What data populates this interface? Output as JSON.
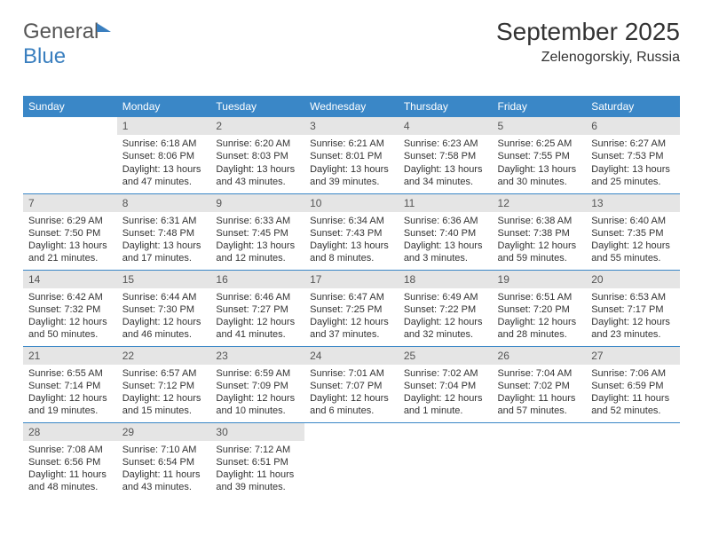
{
  "logo": {
    "text1": "General",
    "text2": "Blue"
  },
  "header": {
    "month": "September 2025",
    "location": "Zelenogorskiy, Russia"
  },
  "colors": {
    "header_bg": "#3a87c7",
    "header_text": "#ffffff",
    "daynum_bg": "#e5e5e5",
    "rule": "#3a87c7",
    "logo_blue": "#3a7fbf"
  },
  "daysOfWeek": [
    "Sunday",
    "Monday",
    "Tuesday",
    "Wednesday",
    "Thursday",
    "Friday",
    "Saturday"
  ],
  "weeks": [
    [
      {
        "day": "",
        "sunrise": "",
        "sunset": "",
        "daylight": ""
      },
      {
        "day": "1",
        "sunrise": "Sunrise: 6:18 AM",
        "sunset": "Sunset: 8:06 PM",
        "daylight": "Daylight: 13 hours and 47 minutes."
      },
      {
        "day": "2",
        "sunrise": "Sunrise: 6:20 AM",
        "sunset": "Sunset: 8:03 PM",
        "daylight": "Daylight: 13 hours and 43 minutes."
      },
      {
        "day": "3",
        "sunrise": "Sunrise: 6:21 AM",
        "sunset": "Sunset: 8:01 PM",
        "daylight": "Daylight: 13 hours and 39 minutes."
      },
      {
        "day": "4",
        "sunrise": "Sunrise: 6:23 AM",
        "sunset": "Sunset: 7:58 PM",
        "daylight": "Daylight: 13 hours and 34 minutes."
      },
      {
        "day": "5",
        "sunrise": "Sunrise: 6:25 AM",
        "sunset": "Sunset: 7:55 PM",
        "daylight": "Daylight: 13 hours and 30 minutes."
      },
      {
        "day": "6",
        "sunrise": "Sunrise: 6:27 AM",
        "sunset": "Sunset: 7:53 PM",
        "daylight": "Daylight: 13 hours and 25 minutes."
      }
    ],
    [
      {
        "day": "7",
        "sunrise": "Sunrise: 6:29 AM",
        "sunset": "Sunset: 7:50 PM",
        "daylight": "Daylight: 13 hours and 21 minutes."
      },
      {
        "day": "8",
        "sunrise": "Sunrise: 6:31 AM",
        "sunset": "Sunset: 7:48 PM",
        "daylight": "Daylight: 13 hours and 17 minutes."
      },
      {
        "day": "9",
        "sunrise": "Sunrise: 6:33 AM",
        "sunset": "Sunset: 7:45 PM",
        "daylight": "Daylight: 13 hours and 12 minutes."
      },
      {
        "day": "10",
        "sunrise": "Sunrise: 6:34 AM",
        "sunset": "Sunset: 7:43 PM",
        "daylight": "Daylight: 13 hours and 8 minutes."
      },
      {
        "day": "11",
        "sunrise": "Sunrise: 6:36 AM",
        "sunset": "Sunset: 7:40 PM",
        "daylight": "Daylight: 13 hours and 3 minutes."
      },
      {
        "day": "12",
        "sunrise": "Sunrise: 6:38 AM",
        "sunset": "Sunset: 7:38 PM",
        "daylight": "Daylight: 12 hours and 59 minutes."
      },
      {
        "day": "13",
        "sunrise": "Sunrise: 6:40 AM",
        "sunset": "Sunset: 7:35 PM",
        "daylight": "Daylight: 12 hours and 55 minutes."
      }
    ],
    [
      {
        "day": "14",
        "sunrise": "Sunrise: 6:42 AM",
        "sunset": "Sunset: 7:32 PM",
        "daylight": "Daylight: 12 hours and 50 minutes."
      },
      {
        "day": "15",
        "sunrise": "Sunrise: 6:44 AM",
        "sunset": "Sunset: 7:30 PM",
        "daylight": "Daylight: 12 hours and 46 minutes."
      },
      {
        "day": "16",
        "sunrise": "Sunrise: 6:46 AM",
        "sunset": "Sunset: 7:27 PM",
        "daylight": "Daylight: 12 hours and 41 minutes."
      },
      {
        "day": "17",
        "sunrise": "Sunrise: 6:47 AM",
        "sunset": "Sunset: 7:25 PM",
        "daylight": "Daylight: 12 hours and 37 minutes."
      },
      {
        "day": "18",
        "sunrise": "Sunrise: 6:49 AM",
        "sunset": "Sunset: 7:22 PM",
        "daylight": "Daylight: 12 hours and 32 minutes."
      },
      {
        "day": "19",
        "sunrise": "Sunrise: 6:51 AM",
        "sunset": "Sunset: 7:20 PM",
        "daylight": "Daylight: 12 hours and 28 minutes."
      },
      {
        "day": "20",
        "sunrise": "Sunrise: 6:53 AM",
        "sunset": "Sunset: 7:17 PM",
        "daylight": "Daylight: 12 hours and 23 minutes."
      }
    ],
    [
      {
        "day": "21",
        "sunrise": "Sunrise: 6:55 AM",
        "sunset": "Sunset: 7:14 PM",
        "daylight": "Daylight: 12 hours and 19 minutes."
      },
      {
        "day": "22",
        "sunrise": "Sunrise: 6:57 AM",
        "sunset": "Sunset: 7:12 PM",
        "daylight": "Daylight: 12 hours and 15 minutes."
      },
      {
        "day": "23",
        "sunrise": "Sunrise: 6:59 AM",
        "sunset": "Sunset: 7:09 PM",
        "daylight": "Daylight: 12 hours and 10 minutes."
      },
      {
        "day": "24",
        "sunrise": "Sunrise: 7:01 AM",
        "sunset": "Sunset: 7:07 PM",
        "daylight": "Daylight: 12 hours and 6 minutes."
      },
      {
        "day": "25",
        "sunrise": "Sunrise: 7:02 AM",
        "sunset": "Sunset: 7:04 PM",
        "daylight": "Daylight: 12 hours and 1 minute."
      },
      {
        "day": "26",
        "sunrise": "Sunrise: 7:04 AM",
        "sunset": "Sunset: 7:02 PM",
        "daylight": "Daylight: 11 hours and 57 minutes."
      },
      {
        "day": "27",
        "sunrise": "Sunrise: 7:06 AM",
        "sunset": "Sunset: 6:59 PM",
        "daylight": "Daylight: 11 hours and 52 minutes."
      }
    ],
    [
      {
        "day": "28",
        "sunrise": "Sunrise: 7:08 AM",
        "sunset": "Sunset: 6:56 PM",
        "daylight": "Daylight: 11 hours and 48 minutes."
      },
      {
        "day": "29",
        "sunrise": "Sunrise: 7:10 AM",
        "sunset": "Sunset: 6:54 PM",
        "daylight": "Daylight: 11 hours and 43 minutes."
      },
      {
        "day": "30",
        "sunrise": "Sunrise: 7:12 AM",
        "sunset": "Sunset: 6:51 PM",
        "daylight": "Daylight: 11 hours and 39 minutes."
      },
      {
        "day": "",
        "sunrise": "",
        "sunset": "",
        "daylight": ""
      },
      {
        "day": "",
        "sunrise": "",
        "sunset": "",
        "daylight": ""
      },
      {
        "day": "",
        "sunrise": "",
        "sunset": "",
        "daylight": ""
      },
      {
        "day": "",
        "sunrise": "",
        "sunset": "",
        "daylight": ""
      }
    ]
  ]
}
